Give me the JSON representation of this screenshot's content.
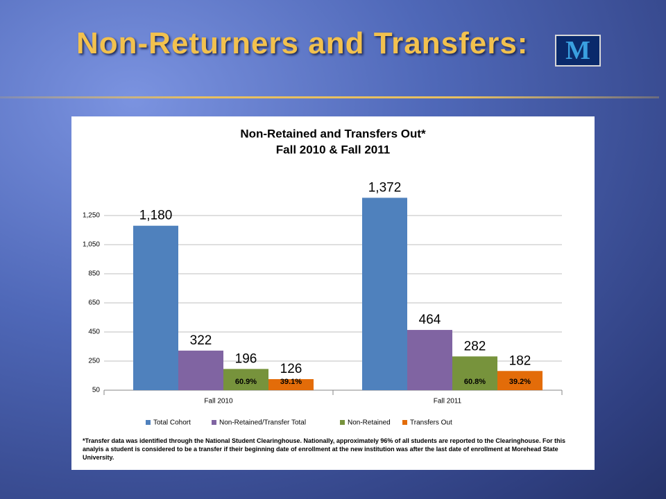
{
  "slide_title": "Non-Returners and Transfers:",
  "logo": "M",
  "chart_data": {
    "type": "bar",
    "title": "Non-Retained and Transfers Out*",
    "subtitle": "Fall 2010 & Fall 2011",
    "categories": [
      "Fall 2010",
      "Fall 2011"
    ],
    "series": [
      {
        "name": "Total Cohort",
        "color": "#4f81bd",
        "values": [
          1180,
          1372
        ],
        "value_labels": [
          "1,180",
          "1,372"
        ]
      },
      {
        "name": "Non-Retained/Transfer Total",
        "color": "#8064a2",
        "values": [
          322,
          464
        ]
      },
      {
        "name": "Non-Retained",
        "color": "#77933c",
        "values": [
          196,
          282
        ],
        "share_labels": [
          "60.9%",
          "60.8%"
        ]
      },
      {
        "name": "Transfers Out",
        "color": "#e36c09",
        "values": [
          126,
          182
        ],
        "share_labels": [
          "39.1%",
          "39.2%"
        ]
      }
    ],
    "ylim": [
      50,
      1450
    ],
    "yticks": [
      50,
      250,
      450,
      650,
      850,
      {
        "value": 1050,
        "label": "1,050"
      },
      {
        "value": 1250,
        "label": "1,250"
      }
    ],
    "grid": true,
    "legend": "bottom",
    "footnote": "*Transfer data was identified through the National Student Clearinghouse.  Nationally, approximately 96% of all students are reported to the Clearinghouse.  For this analyis  a student is considered to be a transfer if their beginning date of enrollment at the new institution was after the last date of enrollment at Morehead State University."
  }
}
